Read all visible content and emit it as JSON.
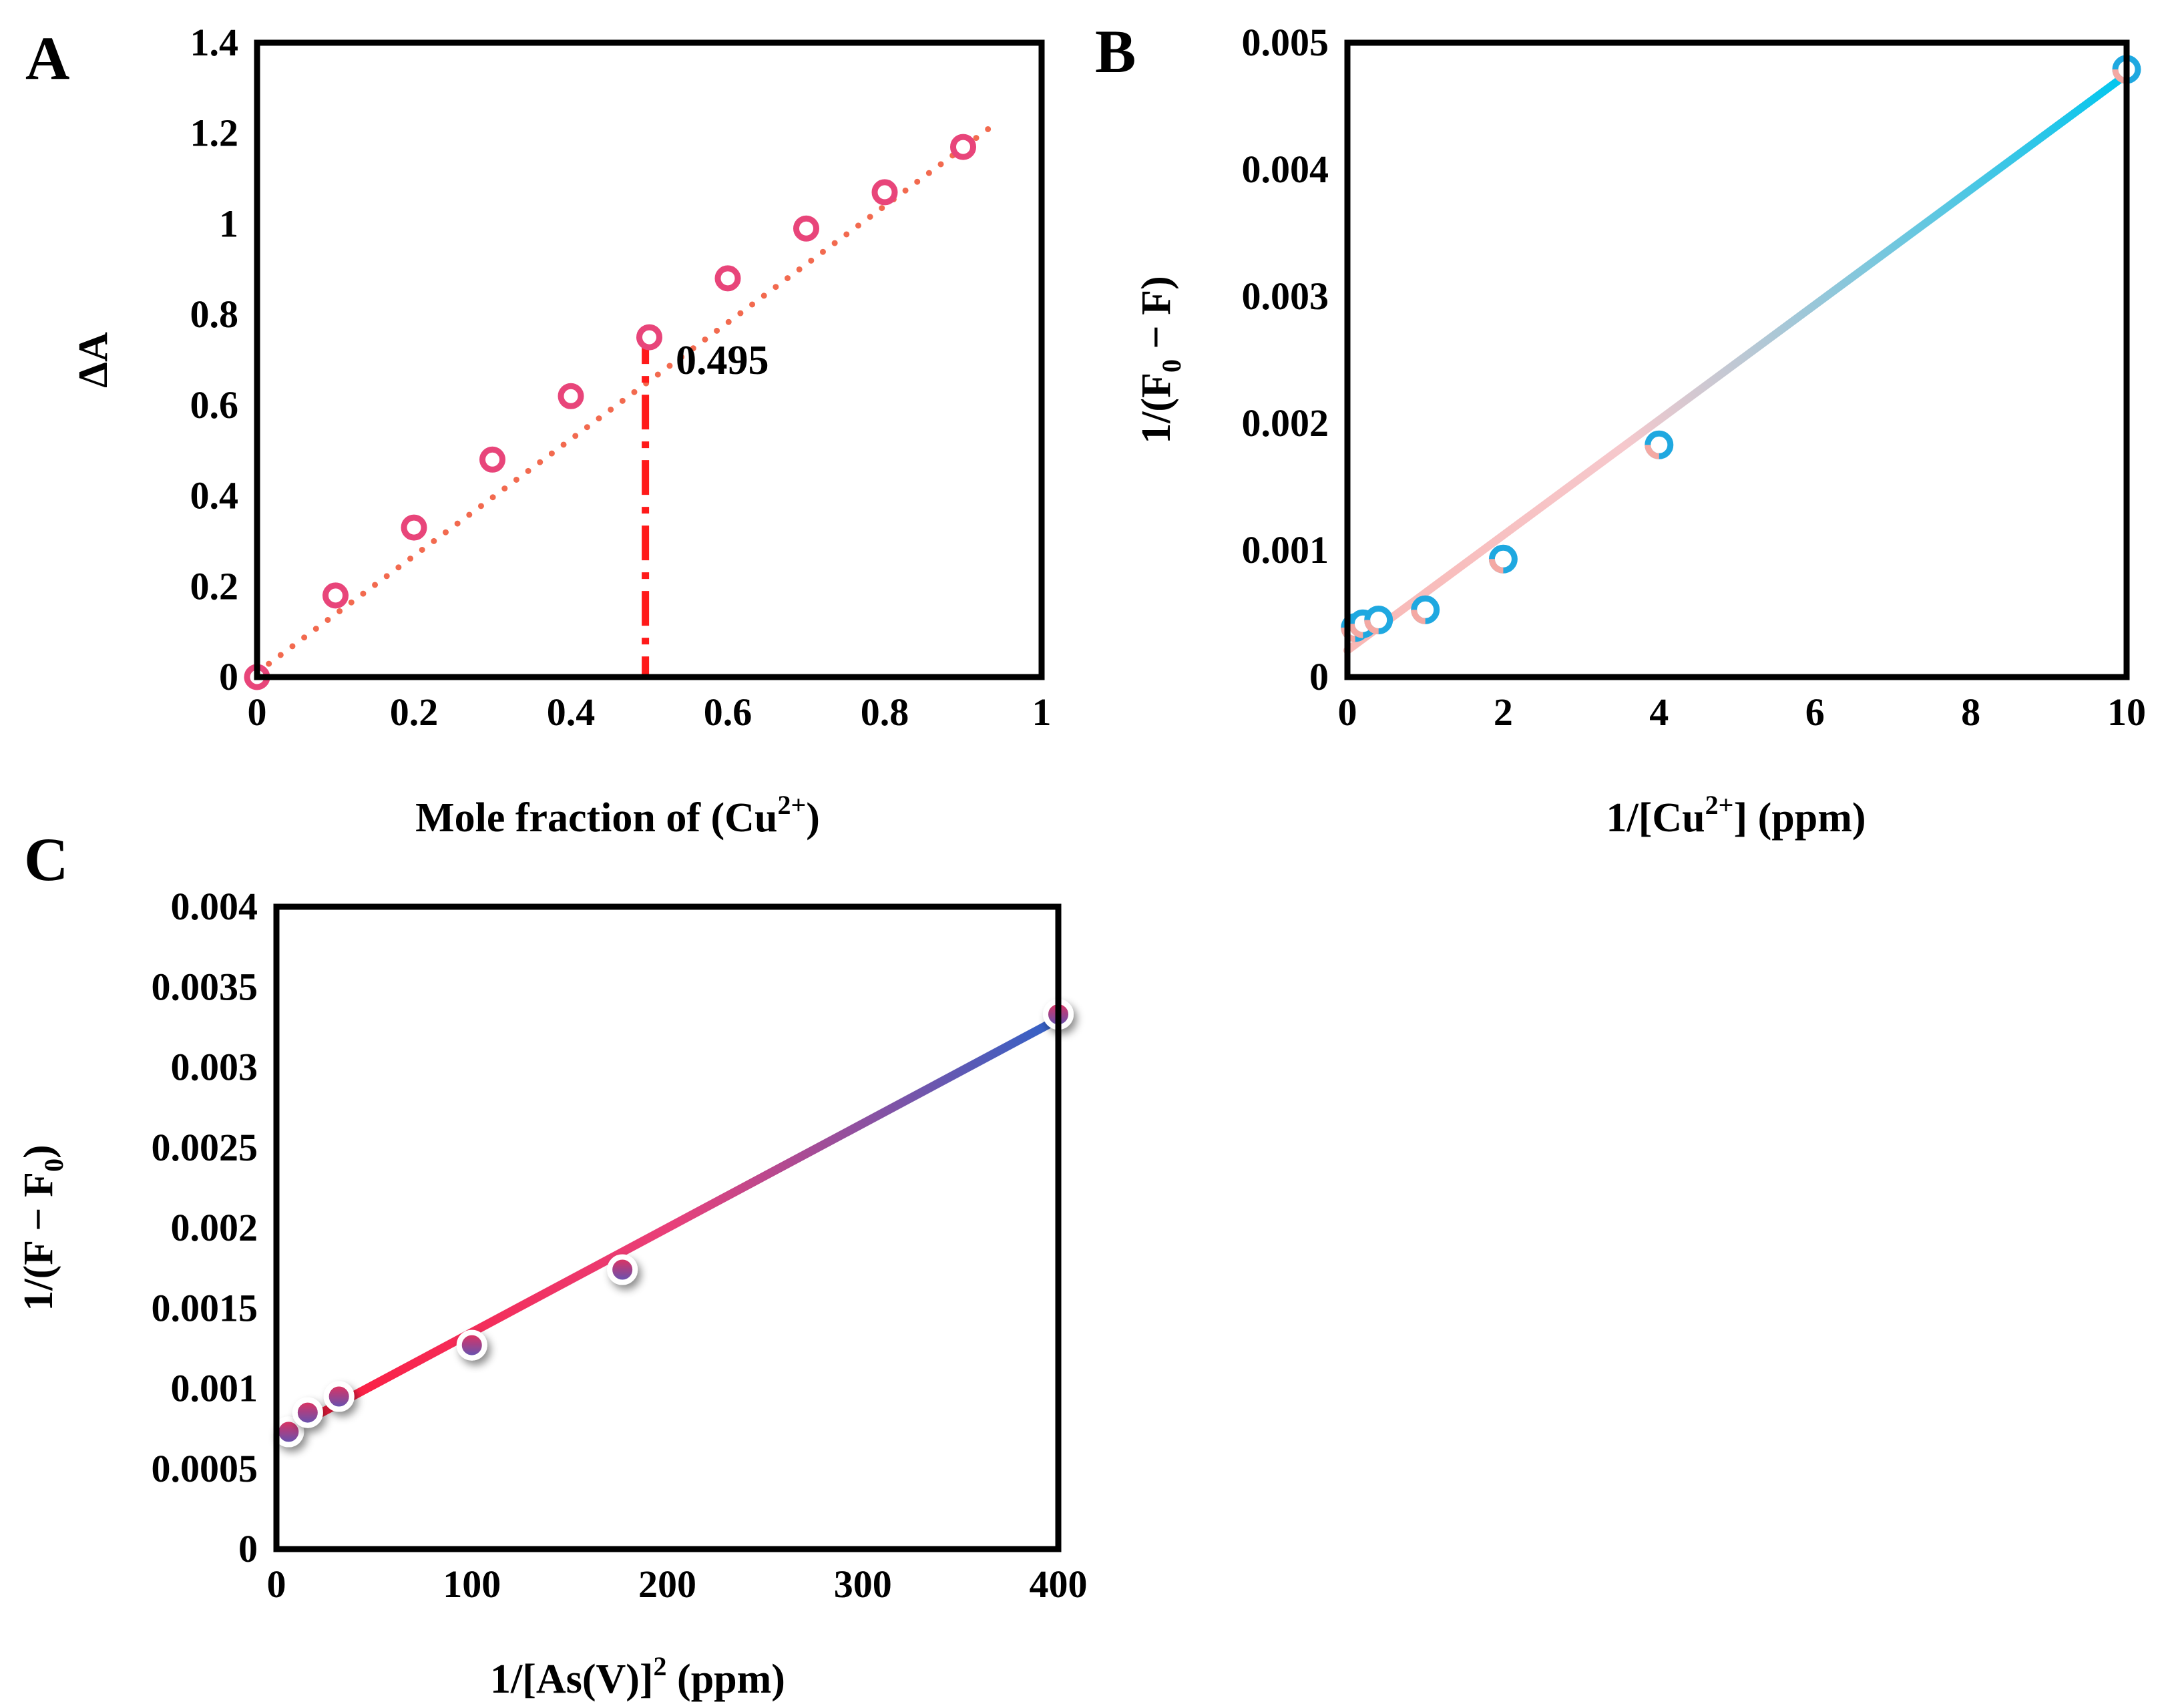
{
  "figure_title": "",
  "colors": {
    "panel_a_marker": "#e8457a",
    "panel_a_trend": "#f26a4f",
    "panel_a_dropline": "#ff1a1a",
    "panel_b_marker_a": "#1fa8e0",
    "panel_b_marker_b": "#f4a9a3",
    "panel_b_line_start": "#f9b8b5",
    "panel_b_line_end": "#00c6ee",
    "panel_c_line_start": "#ff1a3a",
    "panel_c_line_mid": "#e8407a",
    "panel_c_line_end": "#2f62c8",
    "panel_c_marker_a": "#e8305a",
    "panel_c_marker_b": "#5a55b8"
  },
  "chart_data": [
    {
      "panel": "A",
      "type": "scatter",
      "title": "",
      "xlabel_main": "Mole fraction of (Cu",
      "xlabel_sup": "2+",
      "xlabel_tail": ")",
      "ylabel": "ΔA",
      "xlim": [
        0,
        1
      ],
      "ylim": [
        0,
        1.4
      ],
      "xticks": [
        0,
        0.2,
        0.4,
        0.6,
        0.8,
        1
      ],
      "xtick_labels": [
        "0",
        "0.2",
        "0.4",
        "0.6",
        "0.8",
        "1"
      ],
      "yticks": [
        0,
        0.2,
        0.4,
        0.6,
        0.8,
        1,
        1.2,
        1.4
      ],
      "ytick_labels": [
        "0",
        "0.2",
        "0.4",
        "0.6",
        "0.8",
        "1",
        "1.2",
        "1.4"
      ],
      "series": [
        {
          "name": "ΔA",
          "x": [
            0,
            0.1,
            0.2,
            0.3,
            0.4,
            0.5,
            0.6,
            0.7,
            0.8,
            0.9
          ],
          "y": [
            0,
            0.18,
            0.33,
            0.48,
            0.62,
            0.75,
            0.88,
            0.99,
            1.07,
            1.17
          ]
        }
      ],
      "trendline": {
        "style": "dotted",
        "x": [
          0,
          0.94
        ],
        "y": [
          0.01,
          1.22
        ]
      },
      "annotation": {
        "text": "0.495",
        "x": 0.495,
        "y": 0.75
      }
    },
    {
      "panel": "B",
      "type": "scatter",
      "title": "",
      "xlabel_main": "1/[Cu",
      "xlabel_sup": "2+",
      "xlabel_tail": "] (ppm)",
      "ylabel_main": "1/(F",
      "ylabel_sub": "0",
      "ylabel_tail": " − F)",
      "xlim": [
        0,
        10
      ],
      "ylim": [
        0,
        0.005
      ],
      "xticks": [
        0,
        2,
        4,
        6,
        8,
        10
      ],
      "xtick_labels": [
        "0",
        "2",
        "4",
        "6",
        "8",
        "10"
      ],
      "yticks": [
        0,
        0.001,
        0.002,
        0.003,
        0.004,
        0.005
      ],
      "ytick_labels": [
        "0",
        "0.001",
        "0.002",
        "0.003",
        "0.004",
        "0.005"
      ],
      "series": [
        {
          "name": "1/(F0 − F)",
          "x": [
            0.1,
            0.2,
            0.4,
            1,
            2,
            4,
            10
          ],
          "y": [
            0.00039,
            0.00042,
            0.00045,
            0.00053,
            0.00093,
            0.00183,
            0.00479
          ]
        }
      ],
      "trendline": {
        "style": "solid",
        "x": [
          0,
          10
        ],
        "y": [
          0.00021,
          0.00475
        ]
      }
    },
    {
      "panel": "C",
      "type": "scatter",
      "title": "",
      "xlabel_main": "1/[As(V)]",
      "xlabel_sup": "2",
      "xlabel_tail": " (ppm)",
      "ylabel_main": "1/(F − F",
      "ylabel_sub": "0",
      "ylabel_tail": ")",
      "xlim": [
        0,
        400
      ],
      "ylim": [
        0,
        0.004
      ],
      "xticks": [
        0,
        100,
        200,
        300,
        400
      ],
      "xtick_labels": [
        "0",
        "100",
        "200",
        "300",
        "400"
      ],
      "yticks": [
        0,
        0.0005,
        0.001,
        0.0015,
        0.002,
        0.0025,
        0.003,
        0.0035,
        0.004
      ],
      "ytick_labels": [
        "0",
        "0.0005",
        "0.001",
        "0.0015",
        "0.002",
        "0.0025",
        "0.003",
        "0.0035",
        "0.004"
      ],
      "series": [
        {
          "name": "1/(F − F0)",
          "x": [
            6.25,
            16,
            32,
            100,
            177,
            400
          ],
          "y": [
            0.00073,
            0.00085,
            0.00095,
            0.00127,
            0.00174,
            0.00333
          ]
        }
      ],
      "trendline": {
        "style": "solid",
        "x": [
          6.25,
          400
        ],
        "y": [
          0.00074,
          0.0033
        ]
      }
    }
  ]
}
